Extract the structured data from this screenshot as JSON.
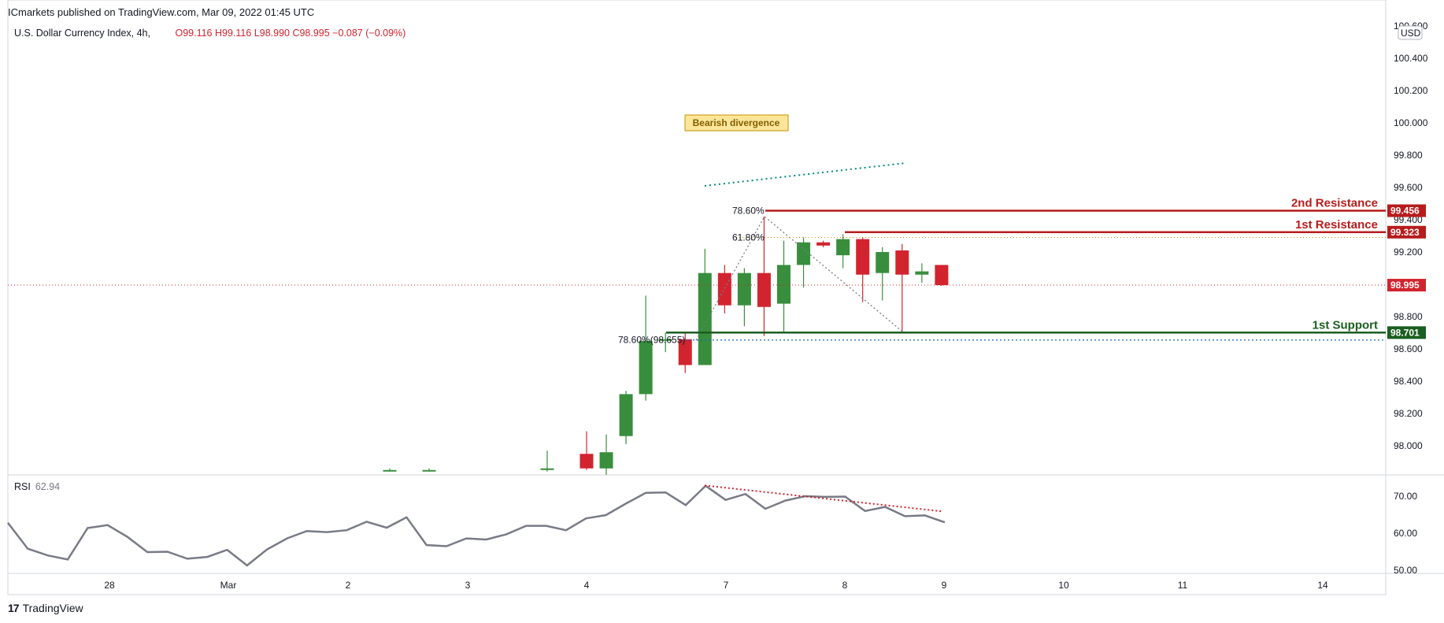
{
  "header": {
    "publisher": "ICmarkets published on TradingView.com, Mar 09, 2022 01:45 UTC",
    "symbol": "U.S. Dollar Currency Index, 4h,",
    "ohlc": "O99.116 H99.116 L98.990 C98.995 −0.087 (−0.09%)"
  },
  "brand": {
    "logo": "17",
    "name": "TradingView"
  },
  "rsi_label": {
    "name": "RSI",
    "value": "62.94"
  },
  "currency": "USD",
  "colors": {
    "up": "#388e3c",
    "down": "#d1242f",
    "resistance": "#b71c1c",
    "support": "#1b5e20",
    "fib_blue": "#1565c0",
    "fib_orange": "#c79100",
    "rsi_line": "#787b86",
    "teal_dots": "#00897b"
  },
  "chart_data": [
    {
      "type": "candlestick",
      "title": "U.S. Dollar Currency Index, 4h",
      "ylim": [
        97.8,
        100.6
      ],
      "y_ticks": [
        "100.600",
        "100.400",
        "100.200",
        "100.000",
        "99.800",
        "99.600",
        "99.400",
        "99.200",
        "99.000",
        "98.800",
        "98.600",
        "98.400",
        "98.200",
        "98.000"
      ],
      "x_ticks": [
        "28",
        "Mar",
        "2",
        "3",
        "4",
        "7",
        "8",
        "9",
        "10",
        "11",
        "14"
      ],
      "candles": [
        {
          "o": 97.85,
          "h": 97.86,
          "l": 97.84,
          "c": 97.85
        },
        {
          "o": 97.85,
          "h": 97.86,
          "l": 97.84,
          "c": 97.85
        },
        {
          "o": 97.85,
          "h": 97.97,
          "l": 97.84,
          "c": 97.86
        },
        {
          "o": 97.95,
          "h": 98.09,
          "l": 97.85,
          "c": 97.86
        },
        {
          "o": 97.86,
          "h": 98.07,
          "l": 97.81,
          "c": 97.96
        },
        {
          "o": 98.06,
          "h": 98.34,
          "l": 98.01,
          "c": 98.32
        },
        {
          "o": 98.32,
          "h": 98.93,
          "l": 98.28,
          "c": 98.65
        },
        {
          "o": 98.65,
          "h": 98.7,
          "l": 98.58,
          "c": 98.66
        },
        {
          "o": 98.66,
          "h": 98.7,
          "l": 98.45,
          "c": 98.5
        },
        {
          "o": 98.5,
          "h": 99.22,
          "l": 98.5,
          "c": 99.07
        },
        {
          "o": 99.07,
          "h": 99.12,
          "l": 98.82,
          "c": 98.87
        },
        {
          "o": 98.87,
          "h": 99.1,
          "l": 98.74,
          "c": 99.07
        },
        {
          "o": 99.07,
          "h": 99.42,
          "l": 98.68,
          "c": 98.86
        },
        {
          "o": 98.88,
          "h": 99.27,
          "l": 98.7,
          "c": 99.12
        },
        {
          "o": 99.12,
          "h": 99.29,
          "l": 98.98,
          "c": 99.26
        },
        {
          "o": 99.26,
          "h": 99.27,
          "l": 99.23,
          "c": 99.24
        },
        {
          "o": 99.18,
          "h": 99.31,
          "l": 99.1,
          "c": 99.28
        },
        {
          "o": 99.28,
          "h": 99.29,
          "l": 98.89,
          "c": 99.06
        },
        {
          "o": 99.07,
          "h": 99.23,
          "l": 98.9,
          "c": 99.2
        },
        {
          "o": 99.21,
          "h": 99.25,
          "l": 98.7,
          "c": 99.06
        },
        {
          "o": 99.06,
          "h": 99.13,
          "l": 99.01,
          "c": 99.08
        },
        {
          "o": 99.12,
          "h": 99.12,
          "l": 98.99,
          "c": 98.995
        }
      ],
      "levels": [
        {
          "label": "2nd Resistance",
          "value": "99.456"
        },
        {
          "label": "1st Resistance",
          "value": "99.323"
        },
        {
          "label": "",
          "value": "98.995"
        },
        {
          "label": "1st Support",
          "value": "98.701"
        }
      ],
      "fib_labels": [
        "78.60%",
        "61.80%",
        "78.60%(98.655)"
      ],
      "annotation": "Bearish divergence"
    },
    {
      "type": "line",
      "title": "RSI",
      "ylim": [
        50,
        72
      ],
      "y_ticks": [
        "70.00",
        "60.00",
        "50.00"
      ],
      "values": [
        62.8,
        55.8,
        54.0,
        52.9,
        61.4,
        62.2,
        59.0,
        54.9,
        55.0,
        53.1,
        53.6,
        55.5,
        51.3,
        55.6,
        58.6,
        60.6,
        60.3,
        60.8,
        63.1,
        61.5,
        64.3,
        56.8,
        56.5,
        58.6,
        58.3,
        59.7,
        62.0,
        62.0,
        60.8,
        64.0,
        64.9,
        68.0,
        70.9,
        71.0,
        67.6,
        72.8,
        69.0,
        70.6,
        66.6,
        68.8,
        70.0,
        69.8,
        69.9,
        66.0,
        67.1,
        64.6,
        64.8,
        62.94
      ],
      "divergence_line": [
        72.9,
        65.9
      ]
    }
  ]
}
